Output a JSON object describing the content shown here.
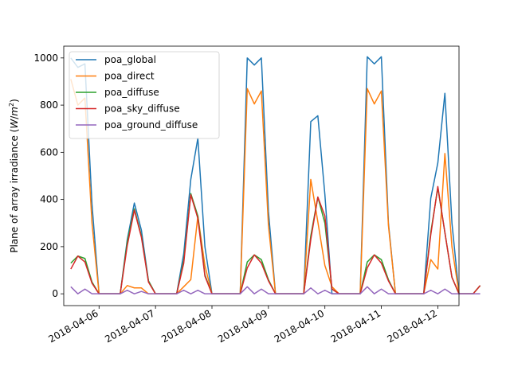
{
  "chart_data": {
    "type": "line",
    "title": "",
    "xlabel": "",
    "ylabel": "Plane of array irradiance (W/m²)",
    "ylabel_parts": {
      "prefix": "Plane of array irradiance (",
      "var": "W",
      "slash": "/",
      "var2": "m",
      "sup": "2",
      "suffix": ")"
    },
    "x_start": "2018-04-05T12:00",
    "x_step_hours": 3,
    "x_ticks": [
      "2018-04-06",
      "2018-04-07",
      "2018-04-08",
      "2018-04-09",
      "2018-04-10",
      "2018-04-11",
      "2018-04-12"
    ],
    "xlim": [
      "2018-04-05T09:00",
      "2018-04-12T09:00"
    ],
    "ylim": [
      -50,
      1050
    ],
    "y_ticks": [
      0,
      200,
      400,
      600,
      800,
      1000
    ],
    "grid": false,
    "legend_position": "top-left",
    "series": [
      {
        "name": "poa_global",
        "color": "#1f77b4",
        "values": [
          1000,
          960,
          975,
          380,
          0,
          0,
          0,
          0,
          230,
          385,
          270,
          55,
          0,
          0,
          0,
          0,
          170,
          485,
          660,
          200,
          0,
          0,
          0,
          0,
          0,
          1000,
          970,
          1000,
          350,
          0,
          0,
          0,
          0,
          0,
          730,
          755,
          420,
          0,
          0,
          0,
          0,
          0,
          1005,
          975,
          1005,
          300,
          0,
          0,
          0,
          0,
          0,
          405,
          555,
          850,
          300,
          0,
          0,
          0,
          35
        ]
      },
      {
        "name": "poa_direct",
        "color": "#ff7f0e",
        "values": [
          910,
          800,
          830,
          300,
          0,
          0,
          0,
          0,
          35,
          25,
          25,
          0,
          0,
          0,
          0,
          0,
          30,
          60,
          330,
          120,
          0,
          0,
          0,
          0,
          0,
          870,
          805,
          860,
          290,
          0,
          0,
          0,
          0,
          0,
          485,
          305,
          120,
          30,
          0,
          0,
          0,
          0,
          870,
          805,
          860,
          290,
          0,
          0,
          0,
          0,
          0,
          145,
          105,
          595,
          200,
          0,
          0,
          0,
          35
        ]
      },
      {
        "name": "poa_diffuse",
        "color": "#2ca02c",
        "values": [
          130,
          160,
          150,
          50,
          0,
          0,
          0,
          0,
          220,
          360,
          245,
          55,
          0,
          0,
          0,
          0,
          140,
          425,
          330,
          80,
          0,
          0,
          0,
          0,
          0,
          135,
          165,
          145,
          60,
          0,
          0,
          0,
          0,
          0,
          245,
          410,
          300,
          20,
          0,
          0,
          0,
          0,
          135,
          165,
          145,
          60,
          0,
          0,
          0,
          0,
          0,
          260,
          450,
          260,
          70,
          0,
          0,
          0,
          35
        ]
      },
      {
        "name": "poa_sky_diffuse",
        "color": "#d62728",
        "values": [
          105,
          160,
          135,
          45,
          0,
          0,
          0,
          0,
          205,
          355,
          240,
          50,
          0,
          0,
          0,
          0,
          130,
          420,
          320,
          75,
          0,
          0,
          0,
          0,
          0,
          110,
          165,
          130,
          55,
          0,
          0,
          0,
          0,
          0,
          230,
          410,
          330,
          20,
          0,
          0,
          0,
          0,
          110,
          165,
          130,
          55,
          0,
          0,
          0,
          0,
          0,
          250,
          455,
          260,
          70,
          0,
          0,
          0,
          35
        ]
      },
      {
        "name": "poa_ground_diffuse",
        "color": "#9467bd",
        "values": [
          30,
          0,
          20,
          0,
          0,
          0,
          0,
          0,
          15,
          0,
          10,
          0,
          0,
          0,
          0,
          0,
          15,
          0,
          15,
          0,
          0,
          0,
          0,
          0,
          0,
          30,
          0,
          20,
          0,
          0,
          0,
          0,
          0,
          0,
          25,
          0,
          15,
          0,
          0,
          0,
          0,
          0,
          30,
          0,
          20,
          0,
          0,
          0,
          0,
          0,
          0,
          15,
          0,
          20,
          0,
          0,
          0,
          0,
          0
        ]
      }
    ]
  }
}
